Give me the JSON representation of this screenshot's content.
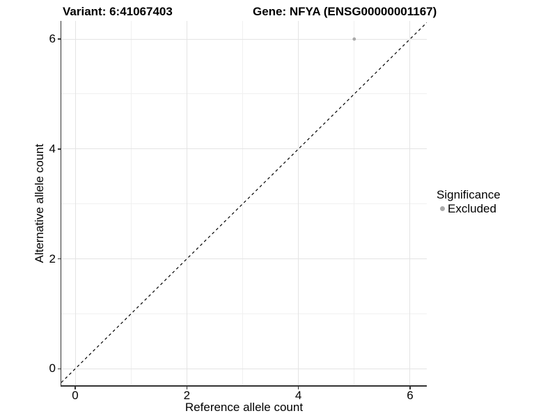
{
  "chart_data": {
    "type": "scatter",
    "title_left": "Variant: 6:41067403",
    "title_right": "Gene: NFYA (ENSG00000001167)",
    "xlabel": "Reference allele count",
    "ylabel": "Alternative allele count",
    "xlim": [
      -0.25,
      6.3
    ],
    "ylim": [
      -0.3,
      6.33
    ],
    "x_major_ticks": [
      0,
      2,
      4,
      6
    ],
    "y_major_ticks": [
      0,
      2,
      4,
      6
    ],
    "x_minor_gridlines": [
      1,
      3,
      5
    ],
    "y_minor_gridlines": [
      1,
      3,
      5
    ],
    "grid": true,
    "points": [
      {
        "x": 5,
        "y": 6,
        "series": "Excluded"
      }
    ],
    "identity_line": {
      "equation": "y = x",
      "style": "dashed",
      "color": "#000000"
    },
    "legend": {
      "title": "Significance",
      "position": "right",
      "items": [
        {
          "label": "Excluded",
          "color": "#a9a9a9"
        }
      ]
    },
    "colors": {
      "point": "#a9a9a9",
      "grid_major": "#e4e4e4",
      "grid_minor": "#f0f0f0",
      "axis_line": "#333333",
      "text": "#000000"
    }
  }
}
